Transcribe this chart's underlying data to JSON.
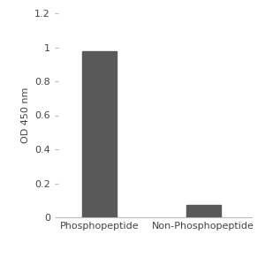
{
  "categories": [
    "Phosphopeptide",
    "Non-Phosphopeptide"
  ],
  "values": [
    0.975,
    0.075
  ],
  "bar_color": "#595959",
  "ylabel": "OD 450 nm",
  "ylim": [
    0,
    1.2
  ],
  "yticks": [
    0,
    0.2,
    0.4,
    0.6,
    0.8,
    1.0,
    1.2
  ],
  "bar_width": 0.5,
  "background_color": "#ffffff",
  "tick_labelsize": 8,
  "ylabel_fontsize": 8
}
